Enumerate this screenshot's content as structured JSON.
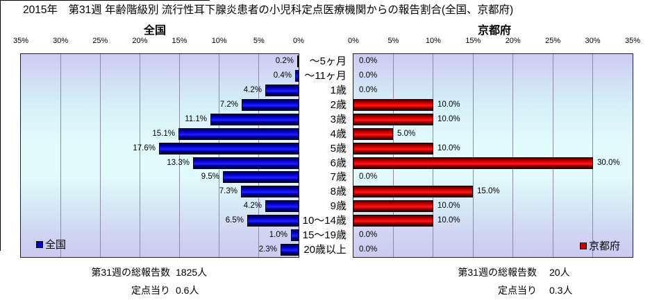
{
  "title": "2015年　第31週 年齢階級別 流行性耳下腺炎患者の小児科定点医療機関からの報告割合(全国、京都府)",
  "categories": [
    "～5ヶ月",
    "～11ヶ月",
    "1歳",
    "2歳",
    "3歳",
    "4歳",
    "5歳",
    "6歳",
    "7歳",
    "8歳",
    "9歳",
    "10～14歳",
    "15～19歳",
    "20歳以上"
  ],
  "chart_data": [
    {
      "type": "bar",
      "title": "全国",
      "orientation": "horizontal",
      "axis_reversed": true,
      "categories": [
        "～5ヶ月",
        "～11ヶ月",
        "1歳",
        "2歳",
        "3歳",
        "4歳",
        "5歳",
        "6歳",
        "7歳",
        "8歳",
        "9歳",
        "10～14歳",
        "15～19歳",
        "20歳以上"
      ],
      "series": [
        {
          "name": "全国",
          "values": [
            0.2,
            0.4,
            4.2,
            7.2,
            11.1,
            15.1,
            17.6,
            13.3,
            9.5,
            7.3,
            4.2,
            6.5,
            1.0,
            2.3
          ]
        }
      ],
      "xlim": [
        0,
        35
      ],
      "tick_labels": [
        "35%",
        "30%",
        "25%",
        "20%",
        "15%",
        "10%",
        "5%",
        "0%"
      ],
      "grid": true,
      "legend": "全国",
      "legend_position": "bottom-left-inside",
      "bar_color": "#0000cc"
    },
    {
      "type": "bar",
      "title": "京都府",
      "orientation": "horizontal",
      "axis_reversed": false,
      "categories": [
        "～5ヶ月",
        "～11ヶ月",
        "1歳",
        "2歳",
        "3歳",
        "4歳",
        "5歳",
        "6歳",
        "7歳",
        "8歳",
        "9歳",
        "10～14歳",
        "15～19歳",
        "20歳以上"
      ],
      "series": [
        {
          "name": "京都府",
          "values": [
            0.0,
            0.0,
            0.0,
            10.0,
            10.0,
            5.0,
            10.0,
            30.0,
            0.0,
            15.0,
            10.0,
            10.0,
            0.0,
            0.0
          ]
        }
      ],
      "xlim": [
        0,
        35
      ],
      "tick_labels": [
        "0%",
        "5%",
        "10%",
        "15%",
        "20%",
        "25%",
        "30%",
        "35%"
      ],
      "grid": true,
      "legend": "京都府",
      "legend_position": "bottom-right-inside",
      "bar_color": "#cc0000"
    }
  ],
  "annotations": {
    "left": {
      "total_label": "第31週の総報告数",
      "total_value": "1825人",
      "per_label": "定点当り",
      "per_value": "0.6人"
    },
    "right": {
      "total_label": "第31週の総報告数",
      "total_value": "20人",
      "per_label": "定点当り",
      "per_value": "0.3人"
    }
  }
}
